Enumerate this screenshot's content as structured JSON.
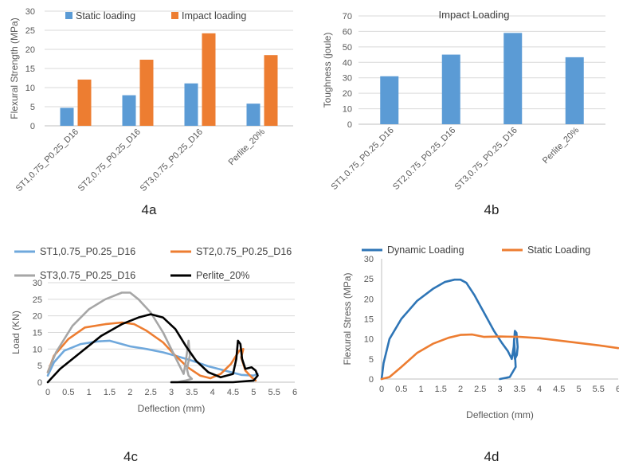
{
  "colors": {
    "static": "#5b9bd5",
    "impact": "#ed7d31",
    "st1": "#6fa8dc",
    "st2": "#ed7d31",
    "st3": "#a6a6a6",
    "perlite": "#000000",
    "dynamic": "#2e75b6",
    "staticLoad": "#ed7d31",
    "grid": "#d9d9d9",
    "axis": "#bfbfbf"
  },
  "captions": [
    "4a",
    "4b",
    "4c",
    "4d"
  ],
  "chart_data": [
    {
      "id": "4a",
      "type": "bar",
      "ylabel": "Flexural Strength (MPa)",
      "ylim": [
        0,
        30
      ],
      "yticks": [
        0,
        5,
        10,
        15,
        20,
        25,
        30
      ],
      "yticklabels": [
        "0",
        "5",
        "10",
        "15",
        "20",
        "25",
        "30"
      ],
      "grid": true,
      "legend": "top",
      "categories": [
        "ST1,0.75_P0.25_D16",
        "ST2,0.75_P0.25_D16",
        "ST3,0.75_P0.25_D16",
        "Perlite_20%"
      ],
      "series": [
        {
          "name": "Static loading",
          "color_key": "static",
          "values": [
            4.7,
            8.0,
            11.1,
            5.8
          ]
        },
        {
          "name": "Impact loading",
          "color_key": "impact",
          "values": [
            12.1,
            17.3,
            24.2,
            18.5
          ]
        }
      ]
    },
    {
      "id": "4b",
      "type": "bar",
      "title": "Impact Loading",
      "ylabel": "Toughness (joule)",
      "ylim": [
        0,
        70
      ],
      "yticks": [
        0,
        10,
        20,
        30,
        40,
        50,
        60,
        70
      ],
      "yticklabels": [
        "0",
        "10",
        "20",
        "30",
        "40",
        "50",
        "60",
        "70"
      ],
      "grid": true,
      "categories": [
        "ST1,0.75_P0.25_D16",
        "ST2,0.75_P0.25_D16",
        "ST3,0.75_P0.25_D16",
        "Perlite_20%"
      ],
      "series": [
        {
          "name": "",
          "color_key": "static",
          "values": [
            31,
            45,
            59,
            43.3
          ]
        }
      ]
    },
    {
      "id": "4c",
      "type": "line",
      "xlabel": "Deflection (mm)",
      "ylabel": "Load (KN)",
      "xlim": [
        0,
        6
      ],
      "ylim": [
        0,
        30
      ],
      "xticks": [
        0,
        0.5,
        1,
        1.5,
        2,
        2.5,
        3,
        3.5,
        4,
        4.5,
        5,
        5.5,
        6
      ],
      "xticklabels": [
        "0",
        "0.5",
        "1",
        "1.5",
        "2",
        "2.5",
        "3",
        "3.5",
        "4",
        "4.5",
        "5",
        "5.5",
        "6"
      ],
      "yticks": [
        0,
        5,
        10,
        15,
        20,
        25,
        30
      ],
      "yticklabels": [
        "0",
        "5",
        "10",
        "15",
        "20",
        "25",
        "30"
      ],
      "grid": true,
      "legend": "top",
      "series": [
        {
          "name": "ST1,0.75_P0.25_D16",
          "color_key": "st1",
          "x": [
            0,
            0.15,
            0.4,
            0.8,
            1.2,
            1.5,
            1.8,
            2.0,
            2.4,
            2.8,
            3.1,
            3.5,
            3.9,
            4.3,
            4.7,
            5.0,
            5.1
          ],
          "y": [
            2,
            6,
            9.5,
            11.5,
            12.3,
            12.5,
            11.5,
            10.8,
            10.0,
            9.0,
            8.0,
            6.5,
            4.8,
            3.5,
            2.2,
            2.0,
            2.5
          ]
        },
        {
          "name": "ST2,0.75_P0.25_D16",
          "color_key": "st2",
          "x": [
            0,
            0.15,
            0.5,
            0.9,
            1.4,
            1.8,
            2.1,
            2.4,
            2.8,
            3.1,
            3.4,
            3.7,
            3.95,
            4.2,
            4.45,
            4.65,
            4.75,
            4.7,
            4.8,
            4.95,
            5.05
          ],
          "y": [
            3,
            8,
            13,
            16.5,
            17.5,
            18.0,
            17.5,
            15.5,
            12,
            8,
            4.5,
            2.0,
            1.2,
            2.5,
            5.5,
            9.5,
            10.0,
            7.5,
            3.5,
            1.5,
            0.5
          ]
        },
        {
          "name": "ST3,0.75_P0.25_D16",
          "color_key": "st3",
          "x": [
            0,
            0.2,
            0.6,
            1.0,
            1.4,
            1.8,
            2.0,
            2.2,
            2.5,
            2.8,
            3.0,
            3.2,
            3.3,
            3.35,
            3.42,
            3.45,
            3.38,
            3.42,
            3.5,
            3.35,
            3.25,
            3.15,
            3.0
          ],
          "y": [
            3,
            9,
            17,
            22,
            25,
            27,
            27,
            25,
            21,
            15,
            10,
            5,
            2.5,
            6,
            12.5,
            8,
            4,
            2,
            1,
            0.5,
            0.3,
            0,
            0
          ]
        },
        {
          "name": "Perlite_20%",
          "color_key": "perlite",
          "x": [
            0,
            0.3,
            0.8,
            1.3,
            1.8,
            2.2,
            2.5,
            2.8,
            3.1,
            3.35,
            3.6,
            3.9,
            4.2,
            4.5,
            4.58,
            4.62,
            4.68,
            4.72,
            4.8,
            4.95,
            5.05,
            5.1,
            5.0,
            4.5,
            3.5,
            3.0
          ],
          "y": [
            0,
            4,
            9,
            14,
            17.5,
            19.5,
            20.5,
            19.5,
            16,
            11,
            6.5,
            3.0,
            1.5,
            2.5,
            7,
            12.5,
            11.5,
            7,
            4,
            4.5,
            3.5,
            2,
            0.5,
            0,
            0,
            0
          ]
        }
      ]
    },
    {
      "id": "4d",
      "type": "line",
      "xlabel": "Deflection (mm)",
      "ylabel": "Flexural Stress (MPa)",
      "xlim": [
        0,
        6
      ],
      "ylim": [
        0,
        30
      ],
      "xticks": [
        0,
        0.5,
        1,
        1.5,
        2,
        2.5,
        3,
        3.5,
        4,
        4.5,
        5,
        5.5,
        6
      ],
      "xticklabels": [
        "0",
        "0.5",
        "1",
        "1.5",
        "2",
        "2.5",
        "3",
        "3.5",
        "4",
        "4.5",
        "5",
        "5.5",
        "6"
      ],
      "yticks": [
        0,
        5,
        10,
        15,
        20,
        25,
        30
      ],
      "yticklabels": [
        "0",
        "5",
        "10",
        "15",
        "20",
        "25",
        "30"
      ],
      "grid": false,
      "legend": "top",
      "series": [
        {
          "name": "Dynamic Loading",
          "color_key": "dynamic",
          "x": [
            0,
            0.05,
            0.2,
            0.5,
            0.9,
            1.3,
            1.6,
            1.85,
            2.0,
            2.15,
            2.35,
            2.6,
            2.85,
            3.05,
            3.2,
            3.3,
            3.35,
            3.38,
            3.42,
            3.45,
            3.43,
            3.38,
            3.35,
            3.36,
            3.4,
            3.25,
            3.0
          ],
          "y": [
            0,
            4,
            10,
            15,
            19.5,
            22.5,
            24.2,
            24.8,
            24.8,
            24,
            21,
            16.5,
            12,
            9,
            7,
            5,
            8,
            12,
            11.5,
            8,
            6,
            5,
            7.5,
            10,
            3,
            0.5,
            0
          ]
        },
        {
          "name": "Static Loading",
          "color_key": "staticLoad",
          "x": [
            0,
            0.2,
            0.5,
            0.9,
            1.3,
            1.7,
            2.0,
            2.3,
            2.6,
            3.0,
            3.5,
            4.0,
            4.5,
            5.0,
            5.5,
            6.0
          ],
          "y": [
            0,
            0.5,
            3,
            6.5,
            8.8,
            10.3,
            11.0,
            11.1,
            10.5,
            10.6,
            10.5,
            10.2,
            9.6,
            9.0,
            8.4,
            7.7
          ]
        }
      ]
    }
  ]
}
